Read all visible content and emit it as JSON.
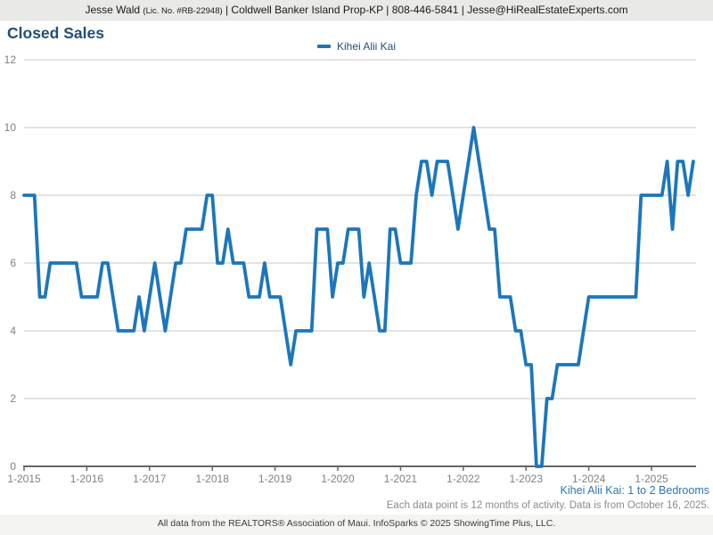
{
  "header": {
    "agent": "Jesse Wald",
    "license": "(Lic. No. #RB-22948)",
    "details": " | Coldwell Banker Island Prop-KP | 808-446-5841 | Jesse@HiRealEstateExperts.com"
  },
  "title": "Closed Sales",
  "legend": {
    "label": "Kihei Alii Kai"
  },
  "footnotes": {
    "segment": "Kihei Alii Kai: 1 to 2 Bedrooms",
    "activity": "Each data point is 12 months of activity. Data is from October 16, 2025.",
    "credit": "All data from the REALTORS® Association of Maui. InfoSparks © 2025 ShowingTime Plus, LLC."
  },
  "colors": {
    "line": "#1D76BB",
    "title_text": "#1F4E79",
    "footnote_blue": "#2E75B6",
    "axis_text": "#808080",
    "gridline": "#c7c7c7",
    "axis_line": "#666666"
  },
  "chart_data": {
    "type": "line",
    "title": "Closed Sales",
    "ylabel": "",
    "xlabel": "",
    "ylim": [
      0,
      12
    ],
    "y_ticks": [
      0,
      2,
      4,
      6,
      8,
      10,
      12
    ],
    "grid": true,
    "legend_position": "top-center",
    "x_tick_labels": [
      "1-2015",
      "1-2016",
      "1-2017",
      "1-2018",
      "1-2019",
      "1-2020",
      "1-2021",
      "1-2022",
      "1-2023",
      "1-2024",
      "1-2025"
    ],
    "series": [
      {
        "name": "Kihei Alii Kai",
        "start_month": "1-2015",
        "end_month": "9-2025",
        "points_per_year": 12,
        "values": [
          8,
          8,
          8,
          5,
          5,
          6,
          6,
          6,
          6,
          6,
          6,
          5,
          5,
          5,
          5,
          6,
          6,
          5,
          4,
          4,
          4,
          4,
          5,
          4,
          5,
          6,
          5,
          4,
          5,
          6,
          6,
          7,
          7,
          7,
          7,
          8,
          8,
          6,
          6,
          7,
          6,
          6,
          6,
          5,
          5,
          5,
          6,
          5,
          5,
          5,
          4,
          3,
          4,
          4,
          4,
          4,
          7,
          7,
          7,
          5,
          6,
          6,
          7,
          7,
          7,
          5,
          6,
          5,
          4,
          4,
          7,
          7,
          6,
          6,
          6,
          8,
          9,
          9,
          8,
          9,
          9,
          9,
          8,
          7,
          8,
          9,
          10,
          9,
          8,
          7,
          7,
          5,
          5,
          5,
          4,
          4,
          3,
          3,
          0,
          0,
          2,
          2,
          3,
          3,
          3,
          3,
          3,
          4,
          5,
          5,
          5,
          5,
          5,
          5,
          5,
          5,
          5,
          5,
          8,
          8,
          8,
          8,
          8,
          9,
          7,
          9,
          9,
          8,
          9
        ]
      }
    ]
  }
}
